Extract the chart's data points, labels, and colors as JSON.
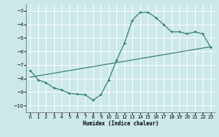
{
  "xlabel": "Humidex (Indice chaleur)",
  "bg_color": "#cce8e8",
  "grid_color": "#b0d0d0",
  "line_color": "#2e7d6e",
  "xlim": [
    -0.5,
    23.5
  ],
  "ylim": [
    -10.5,
    -2.5
  ],
  "yticks": [
    -10,
    -9,
    -8,
    -7,
    -6,
    -5,
    -4,
    -3
  ],
  "xticks": [
    0,
    1,
    2,
    3,
    4,
    5,
    6,
    7,
    8,
    9,
    10,
    11,
    12,
    13,
    14,
    15,
    16,
    17,
    18,
    19,
    20,
    21,
    22,
    23
  ],
  "series1_x": [
    0,
    1,
    2,
    3,
    4,
    5,
    6,
    7,
    8,
    9,
    10,
    11,
    12,
    13,
    14,
    15,
    16,
    17,
    18,
    19,
    20,
    21,
    22,
    23
  ],
  "series1_y": [
    -7.4,
    -8.1,
    -8.3,
    -8.7,
    -8.85,
    -9.1,
    -9.15,
    -9.2,
    -9.6,
    -9.2,
    -8.1,
    -6.65,
    -5.4,
    -3.7,
    -3.1,
    -3.1,
    -3.5,
    -4.0,
    -4.55,
    -4.55,
    -4.7,
    -4.55,
    -4.7,
    -5.7
  ],
  "series2_x": [
    0,
    23
  ],
  "series2_y": [
    -7.9,
    -5.65
  ],
  "xlabel_fontsize": 5.5,
  "tick_fontsize": 5.0
}
